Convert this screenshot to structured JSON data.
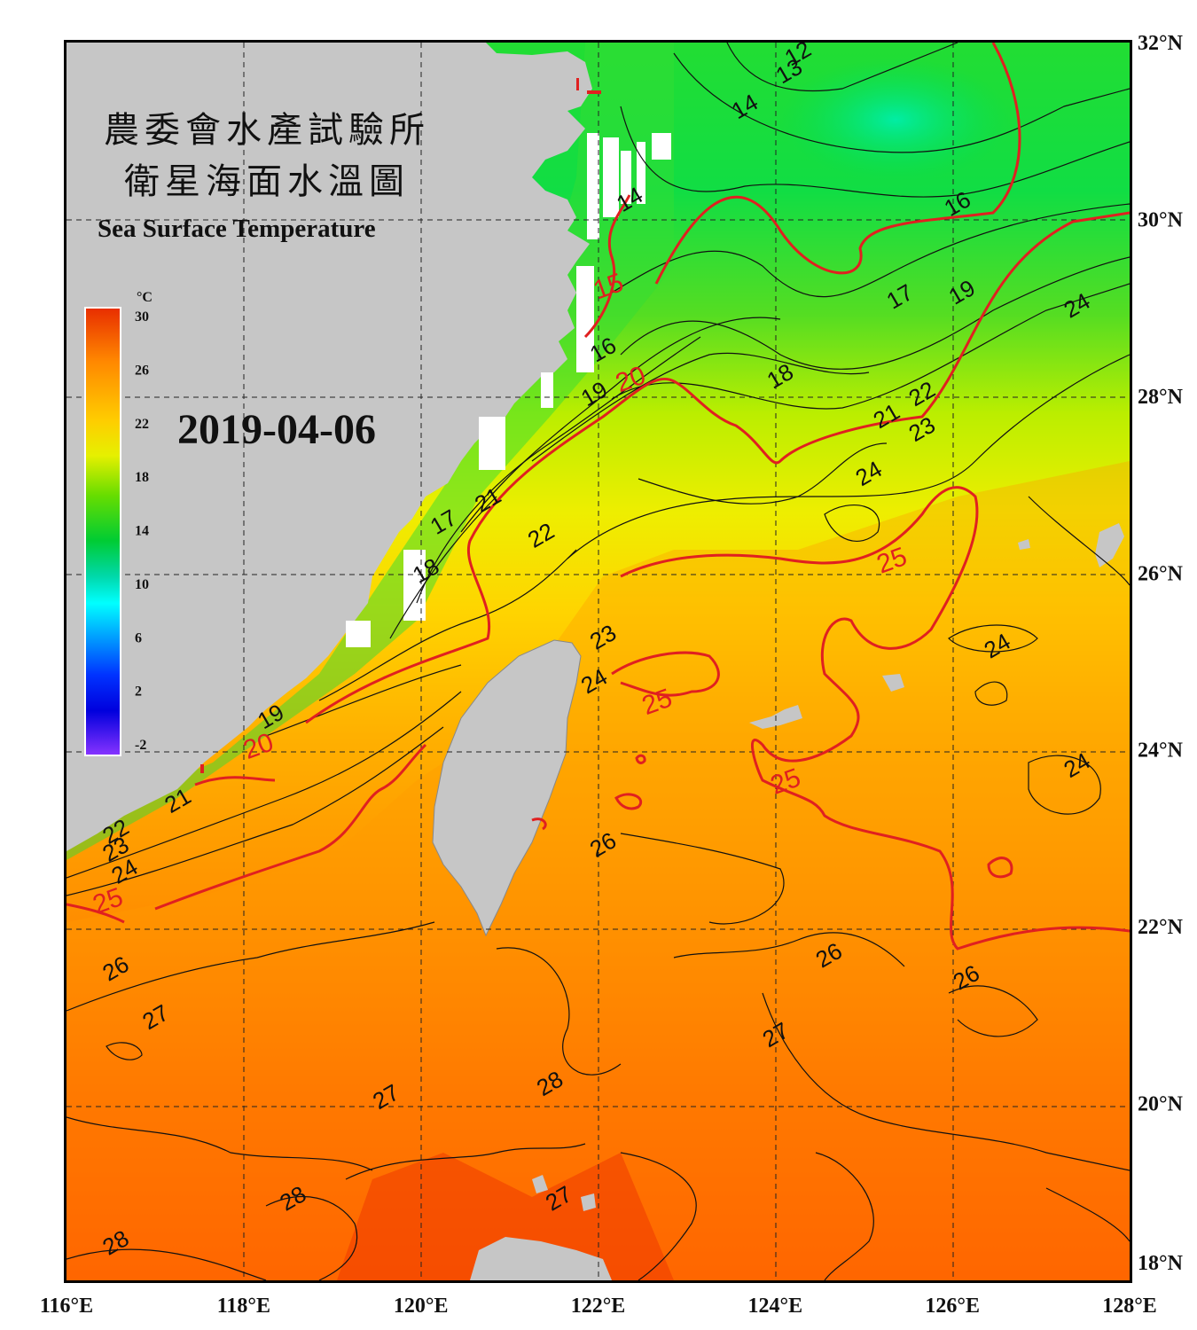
{
  "title": {
    "line1": "農委會水產試驗所",
    "line2": "衛星海面水溫圖",
    "english": "Sea Surface Temperature"
  },
  "date": "2019-04-06",
  "colorbar": {
    "unit": "°C",
    "ticks": [
      "30",
      "26",
      "22",
      "18",
      "14",
      "10",
      "6",
      "2",
      "-2"
    ],
    "colors": [
      "#e82d00",
      "#ff8800",
      "#ffcc00",
      "#e6f000",
      "#66dd00",
      "#00cc33",
      "#00d8aa",
      "#00ffff",
      "#0099ff",
      "#0033ff",
      "#0000dd",
      "#8833ff"
    ]
  },
  "axes": {
    "lon_labels": [
      "116°E",
      "118°E",
      "120°E",
      "122°E",
      "124°E",
      "126°E",
      "128°E"
    ],
    "lat_labels": [
      "32°N",
      "30°N",
      "28°N",
      "26°N",
      "24°N",
      "22°N",
      "20°N",
      "18°N"
    ],
    "lon_range": [
      116,
      128
    ],
    "lat_range": [
      18,
      32
    ],
    "grid": "dashed"
  },
  "colors": {
    "land": "#c6c6c6",
    "isotherm_major": "#e02020",
    "isotherm_minor": "#111111"
  },
  "contour_labels": [
    {
      "text": "12",
      "lon": 124.3,
      "lat": 31.8
    },
    {
      "text": "13",
      "lon": 124.2,
      "lat": 31.6
    },
    {
      "text": "14",
      "lon": 123.7,
      "lat": 31.2
    },
    {
      "text": "14",
      "lon": 122.4,
      "lat": 30.15
    },
    {
      "text": "16",
      "lon": 126.1,
      "lat": 30.1
    },
    {
      "text": "17",
      "lon": 125.45,
      "lat": 29.05
    },
    {
      "text": "19",
      "lon": 126.15,
      "lat": 29.1
    },
    {
      "text": "24",
      "lon": 127.45,
      "lat": 28.95
    },
    {
      "text": "16",
      "lon": 122.1,
      "lat": 28.45
    },
    {
      "text": "18",
      "lon": 124.1,
      "lat": 28.15
    },
    {
      "text": "19",
      "lon": 122.0,
      "lat": 27.95
    },
    {
      "text": "21",
      "lon": 125.3,
      "lat": 27.7
    },
    {
      "text": "22",
      "lon": 125.7,
      "lat": 27.95
    },
    {
      "text": "23",
      "lon": 125.7,
      "lat": 27.55
    },
    {
      "text": "24",
      "lon": 125.1,
      "lat": 27.05
    },
    {
      "text": "21",
      "lon": 120.8,
      "lat": 26.75
    },
    {
      "text": "17",
      "lon": 120.3,
      "lat": 26.5
    },
    {
      "text": "22",
      "lon": 121.4,
      "lat": 26.35
    },
    {
      "text": "18",
      "lon": 120.1,
      "lat": 25.95
    },
    {
      "text": "23",
      "lon": 122.1,
      "lat": 25.2
    },
    {
      "text": "24",
      "lon": 126.55,
      "lat": 25.1
    },
    {
      "text": "24",
      "lon": 122.0,
      "lat": 24.7
    },
    {
      "text": "19",
      "lon": 118.35,
      "lat": 24.3
    },
    {
      "text": "21",
      "lon": 117.3,
      "lat": 23.35
    },
    {
      "text": "24",
      "lon": 127.45,
      "lat": 23.75
    },
    {
      "text": "22",
      "lon": 116.6,
      "lat": 23.0
    },
    {
      "text": "23",
      "lon": 116.6,
      "lat": 22.8
    },
    {
      "text": "24",
      "lon": 116.7,
      "lat": 22.55
    },
    {
      "text": "26",
      "lon": 122.1,
      "lat": 22.85
    },
    {
      "text": "26",
      "lon": 124.65,
      "lat": 21.6
    },
    {
      "text": "26",
      "lon": 126.2,
      "lat": 21.35
    },
    {
      "text": "26",
      "lon": 116.6,
      "lat": 21.45
    },
    {
      "text": "27",
      "lon": 117.05,
      "lat": 20.9
    },
    {
      "text": "27",
      "lon": 124.05,
      "lat": 20.7
    },
    {
      "text": "28",
      "lon": 121.5,
      "lat": 20.15
    },
    {
      "text": "27",
      "lon": 119.65,
      "lat": 20.0
    },
    {
      "text": "28",
      "lon": 118.6,
      "lat": 18.85
    },
    {
      "text": "27",
      "lon": 121.6,
      "lat": 18.85
    },
    {
      "text": "28",
      "lon": 116.6,
      "lat": 18.35
    }
  ],
  "contour_labels_major": [
    {
      "text": "15",
      "lon": 122.15,
      "lat": 29.15
    },
    {
      "text": "20",
      "lon": 122.4,
      "lat": 28.1
    },
    {
      "text": "25",
      "lon": 125.35,
      "lat": 26.05
    },
    {
      "text": "25",
      "lon": 122.7,
      "lat": 24.45
    },
    {
      "text": "25",
      "lon": 124.15,
      "lat": 23.55
    },
    {
      "text": "20",
      "lon": 118.2,
      "lat": 23.95
    },
    {
      "text": "25",
      "lon": 116.5,
      "lat": 22.2
    }
  ]
}
